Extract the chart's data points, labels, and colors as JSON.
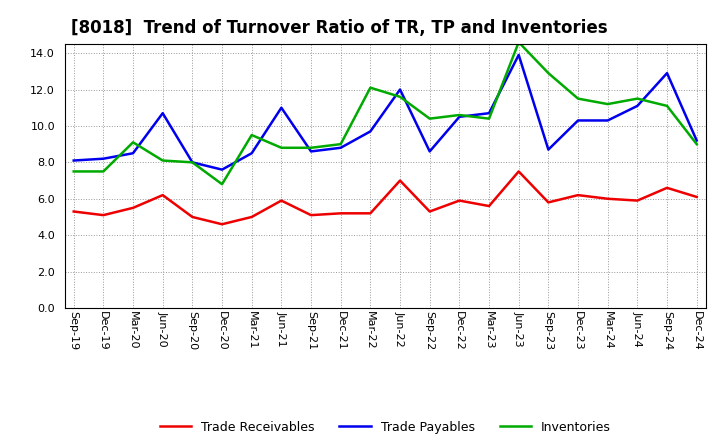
{
  "title": "[8018]  Trend of Turnover Ratio of TR, TP and Inventories",
  "labels": [
    "Sep-19",
    "Dec-19",
    "Mar-20",
    "Jun-20",
    "Sep-20",
    "Dec-20",
    "Mar-21",
    "Jun-21",
    "Sep-21",
    "Dec-21",
    "Mar-22",
    "Jun-22",
    "Sep-22",
    "Dec-22",
    "Mar-23",
    "Jun-23",
    "Sep-23",
    "Dec-23",
    "Mar-24",
    "Jun-24",
    "Sep-24",
    "Dec-24"
  ],
  "trade_receivables": [
    5.3,
    5.1,
    5.5,
    6.2,
    5.0,
    4.6,
    5.0,
    5.9,
    5.1,
    5.2,
    5.2,
    7.0,
    5.3,
    5.9,
    5.6,
    7.5,
    5.8,
    6.2,
    6.0,
    5.9,
    6.6,
    6.1
  ],
  "trade_payables": [
    8.1,
    8.2,
    8.5,
    10.7,
    8.0,
    7.6,
    8.5,
    11.0,
    8.6,
    8.8,
    9.7,
    12.0,
    8.6,
    10.5,
    10.7,
    13.9,
    8.7,
    10.3,
    10.3,
    11.1,
    12.9,
    9.2
  ],
  "inventories": [
    7.5,
    7.5,
    9.1,
    8.1,
    8.0,
    6.8,
    9.5,
    8.8,
    8.8,
    9.0,
    12.1,
    11.6,
    10.4,
    10.6,
    10.4,
    14.6,
    12.9,
    11.5,
    11.2,
    11.5,
    11.1,
    9.0
  ],
  "ylim": [
    0,
    14.5
  ],
  "yticks": [
    0.0,
    2.0,
    4.0,
    6.0,
    8.0,
    10.0,
    12.0,
    14.0
  ],
  "color_tr": "#EE0000",
  "color_tp": "#0000EE",
  "color_inv": "#00AA00",
  "legend_labels": [
    "Trade Receivables",
    "Trade Payables",
    "Inventories"
  ],
  "background_color": "#FFFFFF",
  "grid_color": "#999999",
  "linewidth": 1.8,
  "title_fontsize": 12,
  "tick_fontsize": 8,
  "legend_fontsize": 9
}
